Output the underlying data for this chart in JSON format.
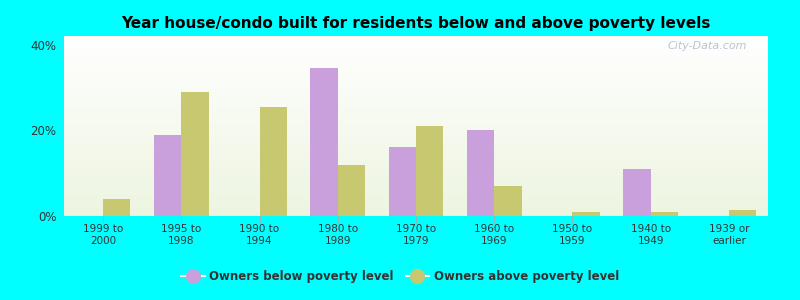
{
  "title": "Year house/condo built for residents below and above poverty levels",
  "categories": [
    "1999 to\n2000",
    "1995 to\n1998",
    "1990 to\n1994",
    "1980 to\n1989",
    "1970 to\n1979",
    "1960 to\n1969",
    "1950 to\n1959",
    "1940 to\n1949",
    "1939 or\nearlier"
  ],
  "below_poverty": [
    0.0,
    19.0,
    0.0,
    34.5,
    16.0,
    20.0,
    0.0,
    11.0,
    0.0
  ],
  "above_poverty": [
    4.0,
    29.0,
    25.5,
    12.0,
    21.0,
    7.0,
    1.0,
    1.0,
    1.5
  ],
  "below_color": "#c9a0dc",
  "above_color": "#c8c870",
  "ylim": [
    0,
    42
  ],
  "yticks": [
    0,
    20,
    40
  ],
  "ytick_labels": [
    "0%",
    "20%",
    "40%"
  ],
  "background_color": "#00ffff",
  "bar_width": 0.35,
  "legend_below_label": "Owners below poverty level",
  "legend_above_label": "Owners above poverty level",
  "watermark": "City-Data.com"
}
